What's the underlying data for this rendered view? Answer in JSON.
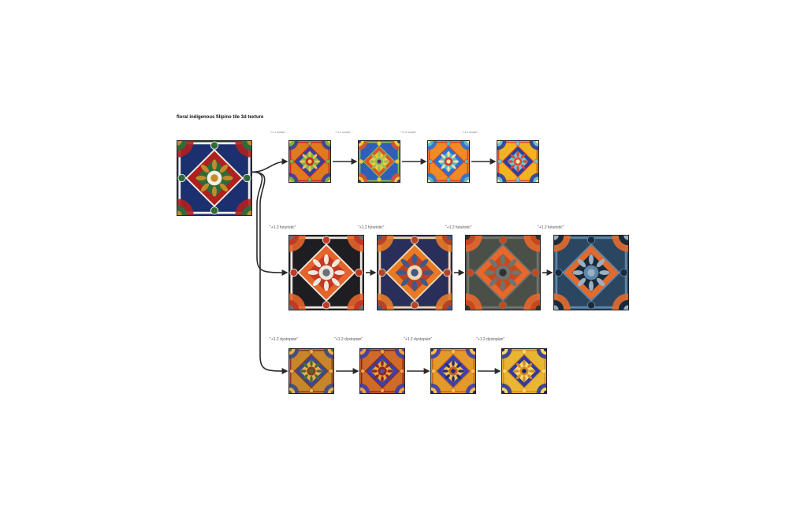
{
  "canvas": {
    "title": "floral indigenous filipino tile 3d texture"
  },
  "source_tile": {
    "name": "source",
    "palette": [
      "#1c2f6e",
      "#b0201e",
      "#f3efe2",
      "#2f6b3a",
      "#c48a2a"
    ]
  },
  "rows": [
    {
      "name": "row-1",
      "small_labels": true,
      "prompts": [
        "\"+1.1 ornate\" ...",
        "\"+1.2 ornate\" ...",
        "\"+1.2 ornate\"",
        "\"+1.2 ornate\" ..."
      ],
      "tiles": [
        {
          "palette": [
            "#e07a1f",
            "#3a3f9a",
            "#c9242d",
            "#7ab34a",
            "#f2c04a"
          ]
        },
        {
          "palette": [
            "#2f5fb8",
            "#d8552a",
            "#8fc05a",
            "#f0c83a",
            "#5a2a7a"
          ]
        },
        {
          "palette": [
            "#f08a24",
            "#2d6fd0",
            "#d83a2a",
            "#57b8c8",
            "#f5e0a0"
          ]
        },
        {
          "palette": [
            "#f2b321",
            "#2b3f9e",
            "#e0452a",
            "#6cc4d8",
            "#fbe7a8"
          ]
        }
      ]
    },
    {
      "name": "row-2",
      "small_labels": false,
      "prompts": [
        "\"+1.2 futuristic\"",
        "\"+1.2 futuristic\"",
        "\"+1.2 futuristic\"",
        "\"+1.2 futuristic\""
      ],
      "tiles": [
        {
          "palette": [
            "#1d1d22",
            "#e4642a",
            "#efe8de",
            "#c23a26",
            "#6b6f78"
          ]
        },
        {
          "palette": [
            "#2a2f5a",
            "#e87a26",
            "#f1d7b0",
            "#b4432a",
            "#3d5a8a"
          ]
        },
        {
          "palette": [
            "#4a4f48",
            "#e8672a",
            "#6f7470",
            "#c44a1e",
            "#2e3230"
          ]
        },
        {
          "palette": [
            "#2b4660",
            "#e26a2c",
            "#5f86a8",
            "#1a2a3a",
            "#9ab0c2"
          ]
        }
      ]
    },
    {
      "name": "row-3",
      "small_labels": false,
      "prompts": [
        "\"+1.2 dystopian\"",
        "\"+1.2 dystopian\"",
        "\"+1.2 dystopian\"",
        "\"+1.2 dystopian\""
      ],
      "tiles": [
        {
          "palette": [
            "#c8862a",
            "#3a4a8a",
            "#8a3a1e",
            "#e8b04a",
            "#4a6a3a"
          ]
        },
        {
          "palette": [
            "#d06a2a",
            "#3b3fa8",
            "#8a2a1e",
            "#f0a040",
            "#5a4ab0"
          ]
        },
        {
          "palette": [
            "#e39a2a",
            "#3b3fb0",
            "#c4661e",
            "#f5c050",
            "#2a2a70"
          ]
        },
        {
          "palette": [
            "#e8b630",
            "#2f3a9c",
            "#d48a24",
            "#f6d96a",
            "#1e2468"
          ]
        }
      ]
    }
  ]
}
